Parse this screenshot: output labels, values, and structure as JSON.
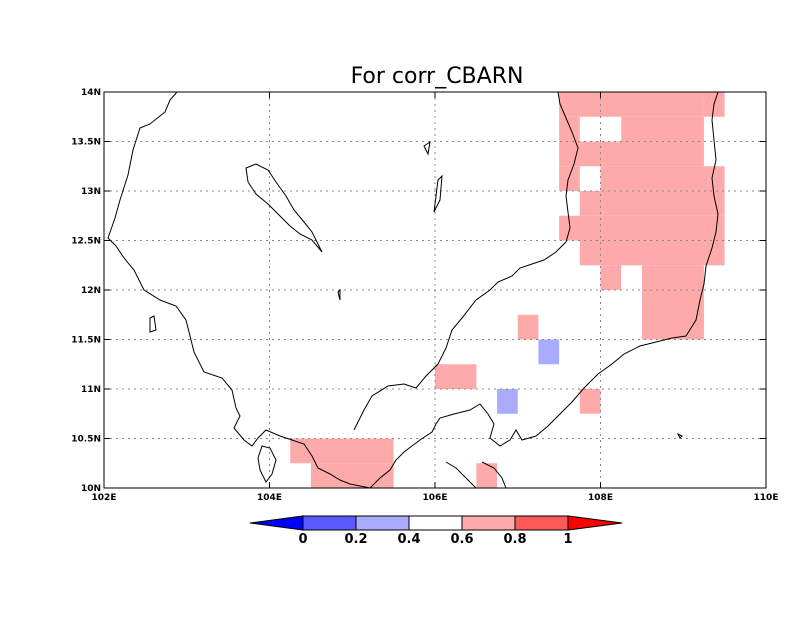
{
  "title": "For corr_CBARN",
  "axes": {
    "lon_min": 102,
    "lon_max": 110,
    "lat_min": 10,
    "lat_max": 14,
    "x_ticks": [
      {
        "value": 102,
        "label": "102E"
      },
      {
        "value": 104,
        "label": "104E"
      },
      {
        "value": 106,
        "label": "106E"
      },
      {
        "value": 108,
        "label": "108E"
      },
      {
        "value": 110,
        "label": "110E"
      }
    ],
    "y_ticks": [
      {
        "value": 10,
        "label": "10N"
      },
      {
        "value": 10.5,
        "label": "10.5N"
      },
      {
        "value": 11,
        "label": "11N"
      },
      {
        "value": 11.5,
        "label": "11.5N"
      },
      {
        "value": 12,
        "label": "12N"
      },
      {
        "value": 12.5,
        "label": "12.5N"
      },
      {
        "value": 13,
        "label": "13N"
      },
      {
        "value": 13.5,
        "label": "13.5N"
      },
      {
        "value": 14,
        "label": "14N"
      }
    ],
    "grid": "dotted"
  },
  "colorbar": {
    "levels": [
      "0",
      "0.2",
      "0.4",
      "0.6",
      "0.8",
      "1"
    ],
    "colors": [
      "#0000ff",
      "#5a5aff",
      "#aaaaff",
      "#ffffff",
      "#ffaaaa",
      "#ff5a5a",
      "#ff0000"
    ],
    "placement": "bottom"
  },
  "chart_data": {
    "type": "heatmap",
    "x_unit": "degrees E",
    "y_unit": "degrees N",
    "cell_size_deg": 0.25,
    "cells": [
      {
        "lon0": 107.5,
        "lat0": 13.75,
        "lon1": 109.25,
        "lat1": 14.0,
        "band": "0.6-0.8"
      },
      {
        "lon0": 109.25,
        "lat0": 13.75,
        "lon1": 109.5,
        "lat1": 14.0,
        "band": "0.6-0.8"
      },
      {
        "lon0": 107.5,
        "lat0": 13.5,
        "lon1": 107.75,
        "lat1": 13.75,
        "band": "0.6-0.8"
      },
      {
        "lon0": 108.25,
        "lat0": 13.5,
        "lon1": 109.25,
        "lat1": 13.75,
        "band": "0.6-0.8"
      },
      {
        "lon0": 107.5,
        "lat0": 13.25,
        "lon1": 109.25,
        "lat1": 13.5,
        "band": "0.6-0.8"
      },
      {
        "lon0": 107.5,
        "lat0": 13.0,
        "lon1": 107.75,
        "lat1": 13.25,
        "band": "0.6-0.8"
      },
      {
        "lon0": 108.0,
        "lat0": 13.0,
        "lon1": 109.5,
        "lat1": 13.25,
        "band": "0.6-0.8"
      },
      {
        "lon0": 107.75,
        "lat0": 12.75,
        "lon1": 109.5,
        "lat1": 13.0,
        "band": "0.6-0.8"
      },
      {
        "lon0": 107.5,
        "lat0": 12.5,
        "lon1": 109.5,
        "lat1": 12.75,
        "band": "0.6-0.8"
      },
      {
        "lon0": 107.75,
        "lat0": 12.25,
        "lon1": 109.5,
        "lat1": 12.5,
        "band": "0.6-0.8"
      },
      {
        "lon0": 108.0,
        "lat0": 12.0,
        "lon1": 108.25,
        "lat1": 12.25,
        "band": "0.6-0.8"
      },
      {
        "lon0": 108.5,
        "lat0": 12.0,
        "lon1": 109.25,
        "lat1": 12.25,
        "band": "0.6-0.8"
      },
      {
        "lon0": 108.5,
        "lat0": 11.5,
        "lon1": 109.25,
        "lat1": 12.0,
        "band": "0.6-0.8"
      },
      {
        "lon0": 107.0,
        "lat0": 11.5,
        "lon1": 107.25,
        "lat1": 11.75,
        "band": "0.6-0.8"
      },
      {
        "lon0": 107.25,
        "lat0": 11.25,
        "lon1": 107.5,
        "lat1": 11.5,
        "band": "0.2-0.4"
      },
      {
        "lon0": 106.0,
        "lat0": 11.0,
        "lon1": 106.5,
        "lat1": 11.25,
        "band": "0.6-0.8"
      },
      {
        "lon0": 106.75,
        "lat0": 10.75,
        "lon1": 107.0,
        "lat1": 11.0,
        "band": "0.2-0.4"
      },
      {
        "lon0": 107.75,
        "lat0": 10.75,
        "lon1": 108.0,
        "lat1": 11.0,
        "band": "0.6-0.8"
      },
      {
        "lon0": 104.25,
        "lat0": 10.25,
        "lon1": 105.5,
        "lat1": 10.5,
        "band": "0.6-0.8"
      },
      {
        "lon0": 104.5,
        "lat0": 10.0,
        "lon1": 105.5,
        "lat1": 10.25,
        "band": "0.6-0.8"
      },
      {
        "lon0": 106.5,
        "lat0": 10.0,
        "lon1": 106.75,
        "lat1": 10.25,
        "band": "0.6-0.8"
      }
    ]
  }
}
